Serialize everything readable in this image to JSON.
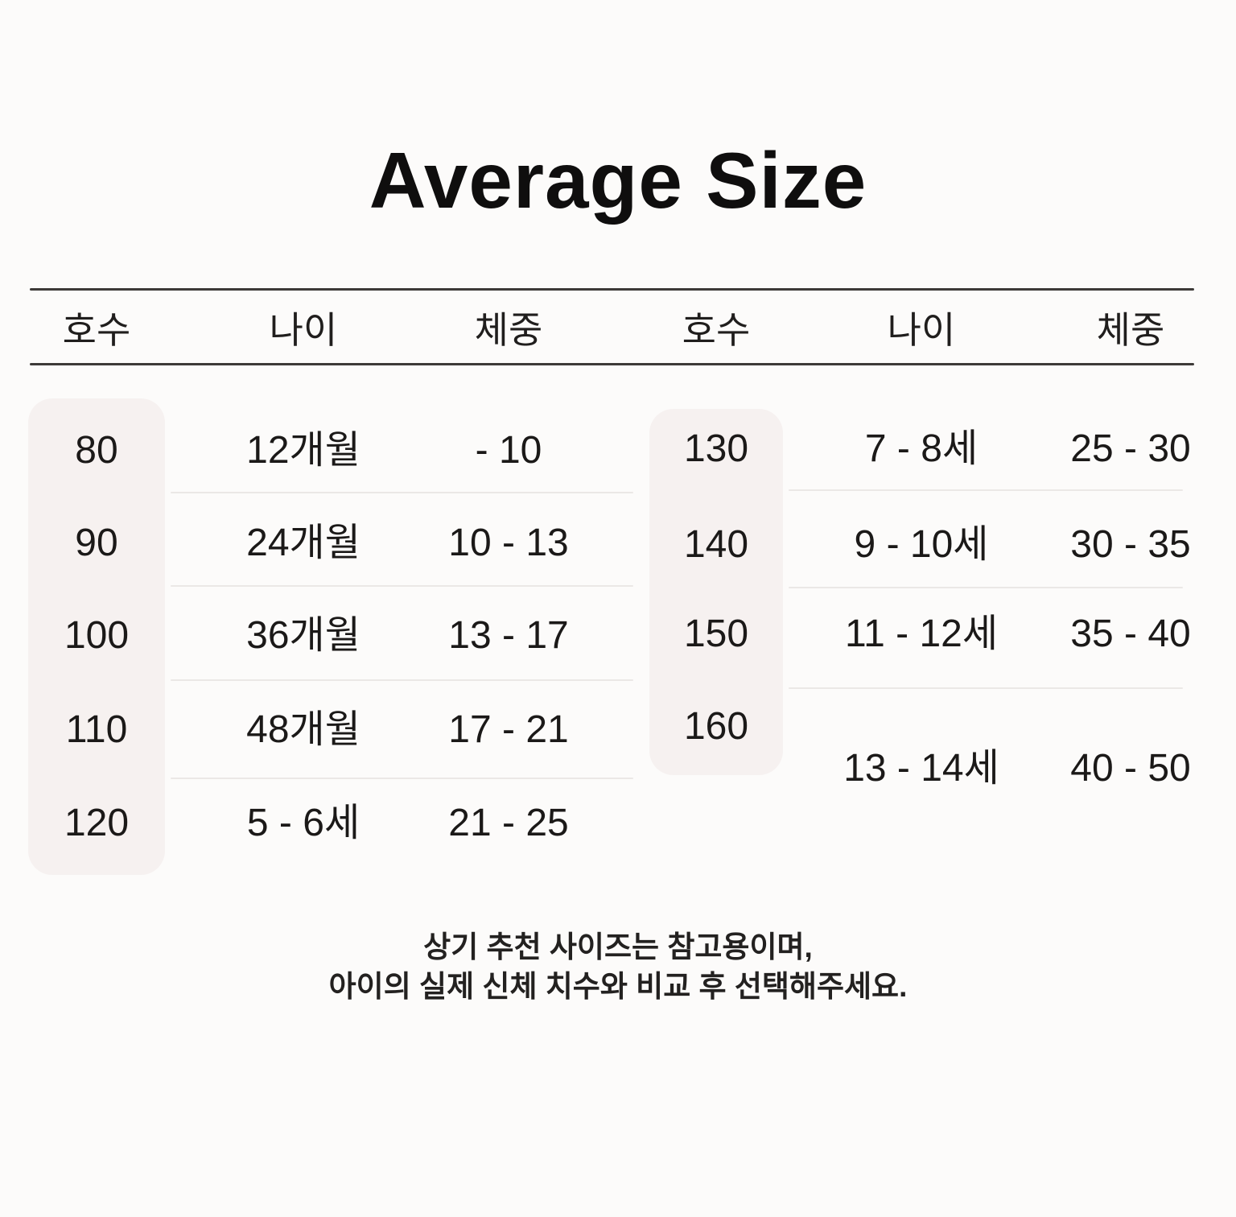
{
  "title": "Average Size",
  "left_table": {
    "headers": {
      "size": "호수",
      "age": "나이",
      "weight": "체중"
    },
    "rows": [
      {
        "size": "80",
        "age": "12개월",
        "weight": "- 10"
      },
      {
        "size": "90",
        "age": "24개월",
        "weight": "10 - 13"
      },
      {
        "size": "100",
        "age": "36개월",
        "weight": "13 - 17"
      },
      {
        "size": "110",
        "age": "48개월",
        "weight": "17 - 21"
      },
      {
        "size": "120",
        "age": "5 - 6세",
        "weight": "21 - 25"
      }
    ]
  },
  "right_table": {
    "headers": {
      "size": "호수",
      "age": "나이",
      "weight": "체중"
    },
    "rows": [
      {
        "size": "130",
        "age": "7 - 8세",
        "weight": "25 - 30"
      },
      {
        "size": "140",
        "age": "9 - 10세",
        "weight": "30 - 35"
      },
      {
        "size": "150",
        "age": "11 - 12세",
        "weight": "35 - 40"
      },
      {
        "size": "160",
        "age": "13 - 14세",
        "weight": "40 - 50"
      }
    ]
  },
  "footer": {
    "line1": "상기 추천 사이즈는 참고용이며,",
    "line2": "아이의 실제 신체 치수와 비교 후 선택해주세요."
  },
  "colors": {
    "background": "#fcfbfa",
    "band": "#f6f1f0",
    "header_rule": "#3d3a38",
    "row_divider": "#ebe8e6",
    "text": "#1b1918"
  },
  "chart_data": [
    {
      "type": "table",
      "title": "Average Size",
      "columns": [
        "호수",
        "나이",
        "체중"
      ],
      "rows": [
        [
          "80",
          "12개월",
          "- 10"
        ],
        [
          "90",
          "24개월",
          "10 - 13"
        ],
        [
          "100",
          "36개월",
          "13 - 17"
        ],
        [
          "110",
          "48개월",
          "17 - 21"
        ],
        [
          "120",
          "5 - 6세",
          "21 - 25"
        ]
      ]
    },
    {
      "type": "table",
      "title": "Average Size",
      "columns": [
        "호수",
        "나이",
        "체중"
      ],
      "rows": [
        [
          "130",
          "7 - 8세",
          "25 - 30"
        ],
        [
          "140",
          "9 - 10세",
          "30 - 35"
        ],
        [
          "150",
          "11 - 12세",
          "35 - 40"
        ],
        [
          "160",
          "13 - 14세",
          "40 - 50"
        ]
      ]
    }
  ]
}
